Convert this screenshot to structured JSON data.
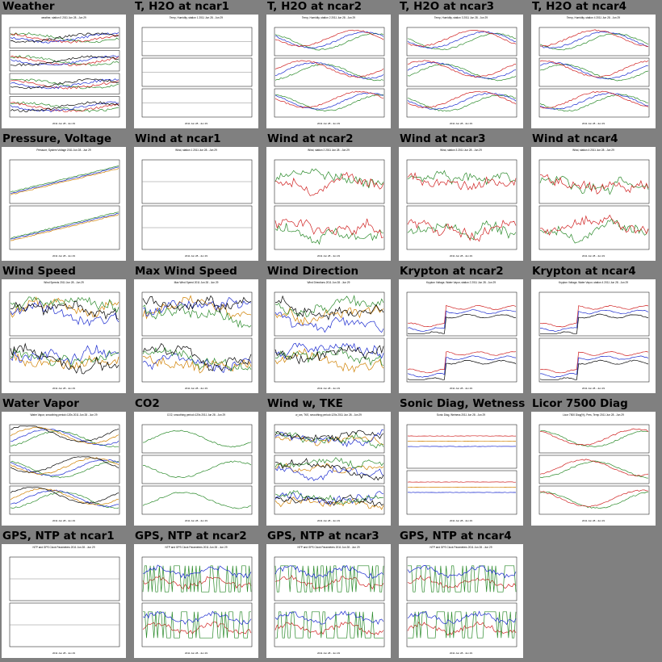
{
  "grid": {
    "rows": [
      [
        "Weather",
        "T, H2O at ncar1",
        "T, H2O at ncar2",
        "T, H2O at ncar3",
        "T, H2O at ncar4"
      ],
      [
        "Pressure, Voltage",
        "Wind at ncar1",
        "Wind at ncar2",
        "Wind at ncar3",
        "Wind at ncar4"
      ],
      [
        "Wind Speed",
        "Max Wind Speed",
        "Wind Direction",
        "Krypton at ncar2",
        "Krypton at ncar4"
      ],
      [
        "Water Vapor",
        "CO2",
        "Wind w, TKE",
        "Sonic Diag, Wetness",
        "Licor 7500 Diag"
      ],
      [
        "GPS, NTP at ncar1",
        "GPS, NTP at ncar2",
        "GPS, NTP at ncar3",
        "GPS, NTP at ncar4"
      ]
    ]
  },
  "thumbnails": [
    {
      "title": "Weather",
      "plot_title": "weather, station 0 2011 Jun 28 - Jun 29",
      "panels": 4,
      "colors": [
        "#2a8a2a",
        "#d02020",
        "#1a2ad0",
        "#000000"
      ],
      "pattern": "mixed"
    },
    {
      "title": "T, H2O at ncar1",
      "plot_title": "Temp, Humidity, station 1 2011 Jun 28 - Jun 29",
      "panels": 3,
      "colors": [
        "#d02020",
        "#2a8a2a",
        "#1a2ad0"
      ],
      "pattern": "empty"
    },
    {
      "title": "T, H2O at ncar2",
      "plot_title": "Temp, Humidity, station 2 2011 Jun 28 - Jun 29",
      "panels": 3,
      "colors": [
        "#2a8a2a",
        "#1a2ad0",
        "#d02020"
      ],
      "pattern": "smooth"
    },
    {
      "title": "T, H2O at ncar3",
      "plot_title": "Temp, Humidity, station 3 2011 Jun 28 - Jun 29",
      "panels": 3,
      "colors": [
        "#2a8a2a",
        "#1a2ad0",
        "#d02020"
      ],
      "pattern": "smooth"
    },
    {
      "title": "T, H2O at ncar4",
      "plot_title": "Temp, Humidity, station 4 2011 Jun 28 - Jun 29",
      "panels": 3,
      "colors": [
        "#2a8a2a",
        "#1a2ad0",
        "#d02020"
      ],
      "pattern": "smooth"
    },
    {
      "title": "Pressure, Voltage",
      "plot_title": "Pressure, System Voltage 2011 Jun 28 - Jun 29",
      "panels": 2,
      "colors": [
        "#d08000",
        "#1a2ad0",
        "#2a8a2a"
      ],
      "pattern": "rise"
    },
    {
      "title": "Wind at ncar1",
      "plot_title": "Wind, station 1 2011 Jun 28 - Jun 29",
      "panels": 2,
      "colors": [
        "#d02020",
        "#2a8a2a"
      ],
      "pattern": "empty"
    },
    {
      "title": "Wind at ncar2",
      "plot_title": "Wind, station 2 2011 Jun 28 - Jun 29",
      "panels": 2,
      "colors": [
        "#2a8a2a",
        "#d02020"
      ],
      "pattern": "noisy"
    },
    {
      "title": "Wind at ncar3",
      "plot_title": "Wind, station 3 2011 Jun 28 - Jun 29",
      "panels": 2,
      "colors": [
        "#2a8a2a",
        "#d02020"
      ],
      "pattern": "noisy"
    },
    {
      "title": "Wind at ncar4",
      "plot_title": "Wind, station 4 2011 Jun 28 - Jun 29",
      "panels": 2,
      "colors": [
        "#2a8a2a",
        "#d02020"
      ],
      "pattern": "noisy"
    },
    {
      "title": "Wind Speed",
      "plot_title": "Wind Speeds 2011 Jun 28 - Jun 29",
      "panels": 2,
      "colors": [
        "#d08000",
        "#1a2ad0",
        "#2a8a2a",
        "#000000"
      ],
      "pattern": "noisy"
    },
    {
      "title": "Max Wind Speed",
      "plot_title": "Max Wind Speed 2011 Jun 28 - Jun 29",
      "panels": 2,
      "colors": [
        "#d08000",
        "#1a2ad0",
        "#2a8a2a",
        "#000000"
      ],
      "pattern": "noisy"
    },
    {
      "title": "Wind Direction",
      "plot_title": "Wind Directions 2011 Jun 28 - Jun 29",
      "panels": 2,
      "colors": [
        "#d08000",
        "#1a2ad0",
        "#2a8a2a",
        "#000000"
      ],
      "pattern": "noisy"
    },
    {
      "title": "Krypton at ncar2",
      "plot_title": "Krypton Voltage, Water Vapor, station 2 2011 Jun 28 - Jun 29",
      "panels": 2,
      "colors": [
        "#d02020",
        "#1a2ad0",
        "#000000"
      ],
      "pattern": "step"
    },
    {
      "title": "Krypton at ncar4",
      "plot_title": "Krypton Voltage, Water Vapor, station 4 2011 Jun 28 - Jun 29",
      "panels": 2,
      "colors": [
        "#d02020",
        "#1a2ad0",
        "#000000"
      ],
      "pattern": "step"
    },
    {
      "title": "Water Vapor",
      "plot_title": "Water Vapor, smoothing period=120s 2011 Jun 28 - Jun 29",
      "panels": 3,
      "colors": [
        "#2a8a2a",
        "#1a2ad0",
        "#d08000",
        "#000000"
      ],
      "pattern": "smooth"
    },
    {
      "title": "CO2",
      "plot_title": "CO2, smoothing period=120s 2011 Jun 28 - Jun 29",
      "panels": 3,
      "colors": [
        "#2a8a2a"
      ],
      "pattern": "smooth"
    },
    {
      "title": "Wind w, TKE",
      "plot_title": "w_sm, TKE, smoothing period=120s 2011 Jun 28 - Jun 29",
      "panels": 3,
      "colors": [
        "#d08000",
        "#1a2ad0",
        "#2a8a2a",
        "#000000"
      ],
      "pattern": "noisy"
    },
    {
      "title": "Sonic Diag, Wetness",
      "plot_title": "Sonic Diag, Wetness 2011 Jun 28 - Jun 29",
      "panels": 2,
      "colors": [
        "#1a2ad0",
        "#d08000",
        "#d02020"
      ],
      "pattern": "flat"
    },
    {
      "title": "Licor 7500 Diag",
      "plot_title": "Licor 7500 Diag(%), Pres, Temp 2011 Jun 28 - Jun 29",
      "panels": 3,
      "colors": [
        "#2a8a2a",
        "#d02020"
      ],
      "pattern": "smooth"
    },
    {
      "title": "GPS, NTP at ncar1",
      "plot_title": "NTP and GPS Clock Parameters 2011 Jun 28 - Jun 29",
      "panels": 2,
      "colors": [
        "#d02020",
        "#2a8a2a",
        "#1a2ad0"
      ],
      "pattern": "empty"
    },
    {
      "title": "GPS, NTP at ncar2",
      "plot_title": "NTP and GPS Clock Parameters 2011 Jun 28 - Jun 29",
      "panels": 2,
      "colors": [
        "#d02020",
        "#2a8a2a",
        "#1a2ad0"
      ],
      "pattern": "gps"
    },
    {
      "title": "GPS, NTP at ncar3",
      "plot_title": "NTP and GPS Clock Parameters 2011 Jun 28 - Jun 29",
      "panels": 2,
      "colors": [
        "#d02020",
        "#2a8a2a",
        "#1a2ad0"
      ],
      "pattern": "gps"
    },
    {
      "title": "GPS, NTP at ncar4",
      "plot_title": "NTP and GPS Clock Parameters 2011 Jun 28 - Jun 29",
      "panels": 2,
      "colors": [
        "#d02020",
        "#2a8a2a",
        "#1a2ad0"
      ],
      "pattern": "gps"
    }
  ],
  "chart_data": {
    "type": "line",
    "title": "",
    "time_range": "2011 Jun 28 - Jun 29"
  }
}
